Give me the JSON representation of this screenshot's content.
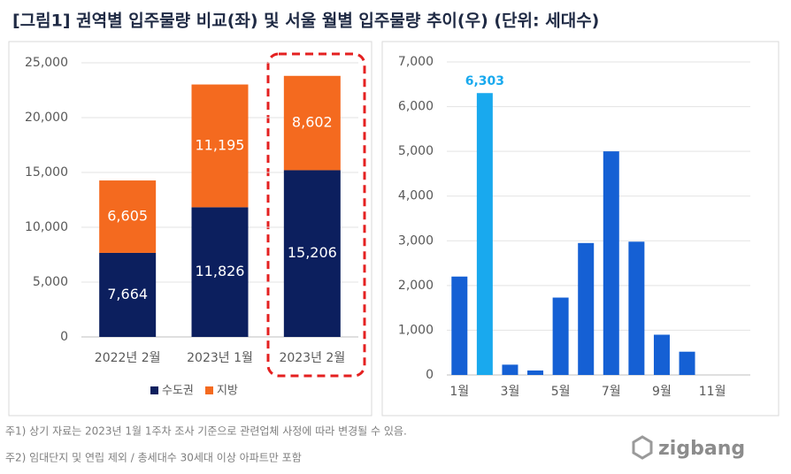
{
  "title": "[그림1] 권역별 입주물량 비교(좌) 및 서울 월별 입주물량 추이(우) (단위: 세대수)",
  "chart_data": [
    {
      "type": "stacked-bar",
      "categories": [
        "2022년 2월",
        "2023년 1월",
        "2023년 2월"
      ],
      "series": [
        {
          "name": "수도권",
          "color": "#0c1f5e",
          "values": [
            7664,
            11826,
            15206
          ],
          "value_labels": [
            "7,664",
            "11,826",
            "15,206"
          ]
        },
        {
          "name": "지방",
          "color": "#f46a1f",
          "values": [
            6605,
            11195,
            8602
          ],
          "value_labels": [
            "6,605",
            "11,195",
            "8,602"
          ]
        }
      ],
      "ylim": [
        0,
        25000
      ],
      "yticks": [
        0,
        {
          "value": 5000,
          "label": "5,000"
        },
        {
          "value": 10000,
          "label": "10,000"
        },
        {
          "value": 15000,
          "label": "15,000"
        },
        {
          "value": 20000,
          "label": "20,000"
        },
        {
          "value": 25000,
          "label": "25,000"
        }
      ],
      "grid": true,
      "legend": "bottom"
    },
    {
      "type": "bar",
      "categories": [
        "1월",
        null,
        "3월",
        null,
        "5월",
        null,
        "7월",
        null,
        "9월",
        null,
        "11월",
        null
      ],
      "values": [
        2200,
        6303,
        230,
        100,
        1730,
        2950,
        5000,
        2980,
        900,
        520,
        null,
        null
      ],
      "value_labels": [
        null,
        "6,303",
        null,
        null,
        null,
        null,
        null,
        null,
        null,
        null,
        null,
        null
      ],
      "colors": [
        "#1560d4",
        "#19a9ee",
        "#1560d4",
        "#1560d4",
        "#1560d4",
        "#1560d4",
        "#1560d4",
        "#1560d4",
        "#1560d4",
        "#1560d4",
        "#1560d4",
        "#1560d4"
      ],
      "ylim": [
        0,
        7000
      ],
      "yticks": [
        0,
        {
          "value": 1000,
          "label": "1,000"
        },
        {
          "value": 2000,
          "label": "2,000"
        },
        {
          "value": 3000,
          "label": "3,000"
        },
        {
          "value": 4000,
          "label": "4,000"
        },
        {
          "value": 5000,
          "label": "5,000"
        },
        {
          "value": 6000,
          "label": "6,000"
        },
        {
          "value": 7000,
          "label": "7,000"
        }
      ],
      "grid": true
    }
  ],
  "notes": [
    "주1) 상기 자료는 2023년 1월 1주차 조사 기준으로 관련업체 사정에 따라 변경될 수 있음.",
    "주2) 임대단지 및 연립 제외 / 총세대수 30세대 이상 아파트만 포함"
  ],
  "logo": "zigbang"
}
